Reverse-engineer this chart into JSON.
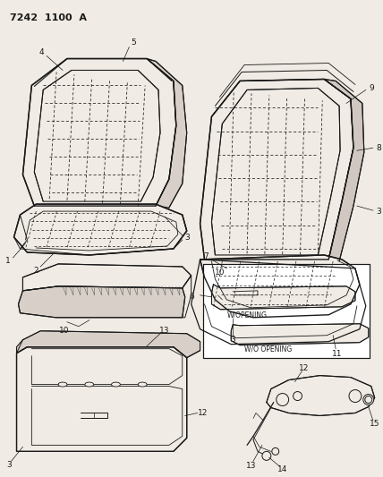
{
  "title": "7242  1100  A",
  "bg_color": "#f0ebe4",
  "line_color": "#1a1a1a",
  "fig_width": 4.28,
  "fig_height": 5.33,
  "dpi": 100,
  "label_fontsize": 6.5,
  "title_fontsize": 8
}
